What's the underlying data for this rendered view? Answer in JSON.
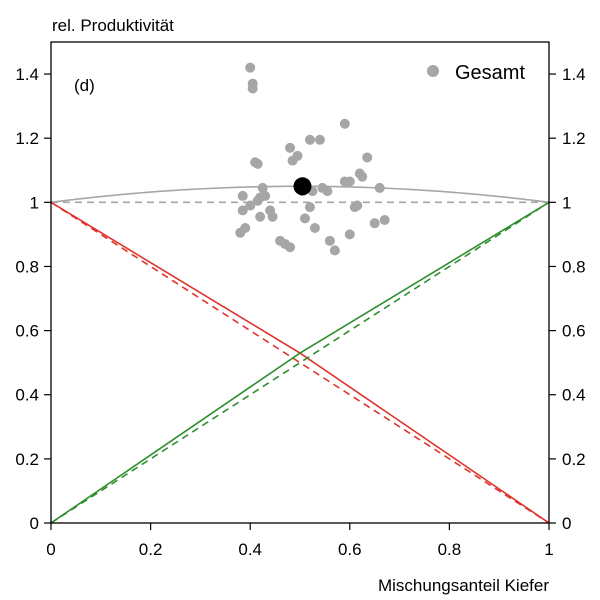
{
  "chart_data": {
    "type": "scatter",
    "panel_label": "(d)",
    "ylabel": "rel. Produktivität",
    "xlabel": "Mischungsanteil Kiefer",
    "xlim": [
      0,
      1
    ],
    "ylim": [
      0,
      1.5
    ],
    "x_ticks": [
      {
        "value": 0,
        "label": "0"
      },
      {
        "value": 0.2,
        "label": "0.2"
      },
      {
        "value": 0.4,
        "label": "0.4"
      },
      {
        "value": 0.6,
        "label": "0.6"
      },
      {
        "value": 0.8,
        "label": "0.8"
      },
      {
        "value": 1,
        "label": "1"
      }
    ],
    "y_ticks": [
      {
        "value": 0,
        "label": "0"
      },
      {
        "value": 0.2,
        "label": "0.2"
      },
      {
        "value": 0.4,
        "label": "0.4"
      },
      {
        "value": 0.6,
        "label": "0.6"
      },
      {
        "value": 0.8,
        "label": "0.8"
      },
      {
        "value": 1,
        "label": "1"
      },
      {
        "value": 1.2,
        "label": "1.2"
      },
      {
        "value": 1.4,
        "label": "1.4"
      }
    ],
    "grid": false,
    "legend": {
      "position": "top-right",
      "entries": [
        {
          "name": "Gesamt",
          "color": "#a6a6a6",
          "marker": "circle"
        }
      ]
    },
    "series": [
      {
        "name": "Gesamt",
        "type": "scatter",
        "color": "#a6a6a6",
        "points": [
          [
            0.4,
            1.42
          ],
          [
            0.405,
            1.37
          ],
          [
            0.405,
            1.355
          ],
          [
            0.41,
            1.125
          ],
          [
            0.415,
            1.12
          ],
          [
            0.48,
            1.17
          ],
          [
            0.485,
            1.13
          ],
          [
            0.495,
            1.145
          ],
          [
            0.52,
            1.195
          ],
          [
            0.54,
            1.195
          ],
          [
            0.59,
            1.245
          ],
          [
            0.59,
            1.065
          ],
          [
            0.6,
            1.065
          ],
          [
            0.635,
            1.14
          ],
          [
            0.62,
            1.09
          ],
          [
            0.625,
            1.08
          ],
          [
            0.66,
            1.045
          ],
          [
            0.385,
            1.02
          ],
          [
            0.42,
            1.015
          ],
          [
            0.425,
            1.045
          ],
          [
            0.43,
            1.02
          ],
          [
            0.415,
            1.005
          ],
          [
            0.4,
            0.99
          ],
          [
            0.385,
            0.975
          ],
          [
            0.39,
            0.92
          ],
          [
            0.38,
            0.905
          ],
          [
            0.42,
            0.955
          ],
          [
            0.44,
            0.975
          ],
          [
            0.445,
            0.955
          ],
          [
            0.46,
            0.88
          ],
          [
            0.47,
            0.87
          ],
          [
            0.48,
            0.86
          ],
          [
            0.505,
            1.035
          ],
          [
            0.51,
            1.05
          ],
          [
            0.51,
            0.95
          ],
          [
            0.525,
            1.035
          ],
          [
            0.52,
            0.985
          ],
          [
            0.53,
            0.92
          ],
          [
            0.545,
            1.045
          ],
          [
            0.555,
            1.035
          ],
          [
            0.56,
            0.88
          ],
          [
            0.57,
            0.85
          ],
          [
            0.6,
            0.9
          ],
          [
            0.61,
            0.985
          ],
          [
            0.615,
            0.99
          ],
          [
            0.65,
            0.935
          ],
          [
            0.67,
            0.945
          ]
        ]
      },
      {
        "name": "mean",
        "type": "point",
        "color": "#000000",
        "points": [
          [
            0.505,
            1.05
          ]
        ]
      },
      {
        "name": "curve-grey-solid",
        "type": "line",
        "color": "#a6a6a6",
        "dash": false,
        "formula": "1 + 0.2*x*(1-x)",
        "x": [
          0,
          0.1,
          0.2,
          0.3,
          0.4,
          0.5,
          0.6,
          0.7,
          0.8,
          0.9,
          1
        ],
        "y": [
          1,
          1.018,
          1.032,
          1.042,
          1.048,
          1.05,
          1.048,
          1.042,
          1.032,
          1.018,
          1
        ]
      },
      {
        "name": "line-grey-dashed",
        "type": "line",
        "color": "#a6a6a6",
        "dash": true,
        "x": [
          0,
          1
        ],
        "y": [
          1,
          1
        ]
      },
      {
        "name": "line-red-solid",
        "type": "line",
        "color": "#e0332b",
        "dash": false,
        "x": [
          0,
          0.5,
          1
        ],
        "y": [
          1,
          0.53,
          0
        ]
      },
      {
        "name": "line-red-dashed",
        "type": "line",
        "color": "#e0332b",
        "dash": true,
        "x": [
          0,
          1
        ],
        "y": [
          1,
          0
        ]
      },
      {
        "name": "line-green-solid",
        "type": "line",
        "color": "#2f8f2f",
        "dash": false,
        "x": [
          0,
          0.5,
          1
        ],
        "y": [
          0,
          0.53,
          1
        ]
      },
      {
        "name": "line-green-dashed",
        "type": "line",
        "color": "#2f8f2f",
        "dash": true,
        "x": [
          0,
          1
        ],
        "y": [
          0,
          1
        ]
      }
    ]
  }
}
